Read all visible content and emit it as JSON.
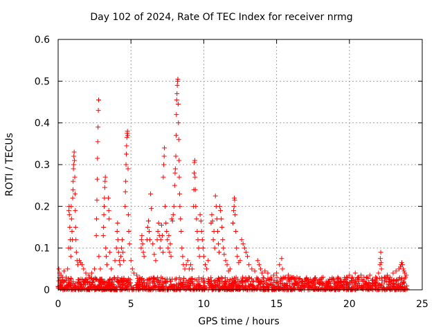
{
  "chart_data": {
    "type": "scatter",
    "title": "Day 102 of 2024, Rate Of TEC Index for receiver nrmg",
    "xlabel": "GPS time / hours",
    "ylabel": "ROTI / TECUs",
    "xlim": [
      0,
      25
    ],
    "ylim": [
      0,
      0.6
    ],
    "xticks": [
      0,
      5,
      10,
      15,
      20,
      25
    ],
    "yticks": [
      0,
      0.1,
      0.2,
      0.3,
      0.4,
      0.5,
      0.6
    ],
    "grid": true,
    "marker": "+",
    "color": "#ff0000",
    "baseline_noise": {
      "x_start": 0,
      "x_end": 24,
      "typical_max": 0.03
    },
    "series": [
      {
        "name": "ROTI",
        "points": [
          [
            0.05,
            0.05
          ],
          [
            0.1,
            0.04
          ],
          [
            0.2,
            0.035
          ],
          [
            0.3,
            0.03
          ],
          [
            0.4,
            0.045
          ],
          [
            0.55,
            0.03
          ],
          [
            0.65,
            0.05
          ],
          [
            0.72,
            0.1
          ],
          [
            0.74,
            0.19
          ],
          [
            0.75,
            0.2
          ],
          [
            0.77,
            0.18
          ],
          [
            0.8,
            0.15
          ],
          [
            0.83,
            0.12
          ],
          [
            0.85,
            0.1
          ],
          [
            0.87,
            0.08
          ],
          [
            0.9,
            0.2
          ],
          [
            0.92,
            0.17
          ],
          [
            0.95,
            0.14
          ],
          [
            0.97,
            0.12
          ],
          [
            1.0,
            0.22
          ],
          [
            1.02,
            0.24
          ],
          [
            1.03,
            0.26
          ],
          [
            1.05,
            0.29
          ],
          [
            1.06,
            0.3
          ],
          [
            1.08,
            0.32
          ],
          [
            1.1,
            0.33
          ],
          [
            1.12,
            0.31
          ],
          [
            1.14,
            0.27
          ],
          [
            1.16,
            0.23
          ],
          [
            1.18,
            0.19
          ],
          [
            1.2,
            0.15
          ],
          [
            1.22,
            0.12
          ],
          [
            1.25,
            0.09
          ],
          [
            1.3,
            0.07
          ],
          [
            1.35,
            0.06
          ],
          [
            1.45,
            0.07
          ],
          [
            1.55,
            0.065
          ],
          [
            1.65,
            0.06
          ],
          [
            1.75,
            0.05
          ],
          [
            1.9,
            0.04
          ],
          [
            2.1,
            0.035
          ],
          [
            2.3,
            0.04
          ],
          [
            2.5,
            0.05
          ],
          [
            2.62,
            0.13
          ],
          [
            2.64,
            0.17
          ],
          [
            2.66,
            0.215
          ],
          [
            2.68,
            0.265
          ],
          [
            2.7,
            0.315
          ],
          [
            2.72,
            0.355
          ],
          [
            2.74,
            0.39
          ],
          [
            2.76,
            0.43
          ],
          [
            2.78,
            0.455
          ],
          [
            2.8,
            0.08
          ],
          [
            2.9,
            0.05
          ],
          [
            3.1,
            0.13
          ],
          [
            3.12,
            0.15
          ],
          [
            3.14,
            0.18
          ],
          [
            3.16,
            0.2
          ],
          [
            3.18,
            0.22
          ],
          [
            3.2,
            0.245
          ],
          [
            3.22,
            0.26
          ],
          [
            3.24,
            0.27
          ],
          [
            3.27,
            0.1
          ],
          [
            3.3,
            0.08
          ],
          [
            3.35,
            0.06
          ],
          [
            3.45,
            0.22
          ],
          [
            3.48,
            0.19
          ],
          [
            3.5,
            0.17
          ],
          [
            3.55,
            0.09
          ],
          [
            3.65,
            0.05
          ],
          [
            3.9,
            0.07
          ],
          [
            4.0,
            0.1
          ],
          [
            4.05,
            0.14
          ],
          [
            4.08,
            0.16
          ],
          [
            4.1,
            0.12
          ],
          [
            4.15,
            0.09
          ],
          [
            4.2,
            0.07
          ],
          [
            4.25,
            0.06
          ],
          [
            4.3,
            0.08
          ],
          [
            4.35,
            0.1
          ],
          [
            4.4,
            0.12
          ],
          [
            4.45,
            0.09
          ],
          [
            4.5,
            0.07
          ],
          [
            4.6,
            0.2
          ],
          [
            4.62,
            0.235
          ],
          [
            4.64,
            0.26
          ],
          [
            4.66,
            0.3
          ],
          [
            4.68,
            0.325
          ],
          [
            4.7,
            0.345
          ],
          [
            4.72,
            0.365
          ],
          [
            4.74,
            0.375
          ],
          [
            4.76,
            0.38
          ],
          [
            4.78,
            0.37
          ],
          [
            4.8,
            0.29
          ],
          [
            4.82,
            0.18
          ],
          [
            4.85,
            0.14
          ],
          [
            4.9,
            0.11
          ],
          [
            5.0,
            0.07
          ],
          [
            5.1,
            0.05
          ],
          [
            5.2,
            0.04
          ],
          [
            5.4,
            0.035
          ],
          [
            5.6,
            0.03
          ],
          [
            5.7,
            0.1
          ],
          [
            5.72,
            0.12
          ],
          [
            5.75,
            0.13
          ],
          [
            5.8,
            0.11
          ],
          [
            5.85,
            0.09
          ],
          [
            5.9,
            0.08
          ],
          [
            6.1,
            0.12
          ],
          [
            6.15,
            0.15
          ],
          [
            6.2,
            0.165
          ],
          [
            6.25,
            0.14
          ],
          [
            6.3,
            0.12
          ],
          [
            6.35,
            0.23
          ],
          [
            6.4,
            0.195
          ],
          [
            6.5,
            0.11
          ],
          [
            6.6,
            0.085
          ],
          [
            6.7,
            0.07
          ],
          [
            6.8,
            0.12
          ],
          [
            6.85,
            0.14
          ],
          [
            6.9,
            0.16
          ],
          [
            6.95,
            0.13
          ],
          [
            7.0,
            0.1
          ],
          [
            7.05,
            0.12
          ],
          [
            7.1,
            0.155
          ],
          [
            7.15,
            0.13
          ],
          [
            7.2,
            0.09
          ],
          [
            7.22,
            0.27
          ],
          [
            7.25,
            0.3
          ],
          [
            7.28,
            0.32
          ],
          [
            7.3,
            0.34
          ],
          [
            7.35,
            0.2
          ],
          [
            7.4,
            0.16
          ],
          [
            7.45,
            0.14
          ],
          [
            7.5,
            0.12
          ],
          [
            7.55,
            0.1
          ],
          [
            7.6,
            0.13
          ],
          [
            7.65,
            0.09
          ],
          [
            7.7,
            0.11
          ],
          [
            7.75,
            0.08
          ],
          [
            7.8,
            0.17
          ],
          [
            7.85,
            0.165
          ],
          [
            7.9,
            0.18
          ],
          [
            7.95,
            0.2
          ],
          [
            8.0,
            0.25
          ],
          [
            8.03,
            0.28
          ],
          [
            8.05,
            0.29
          ],
          [
            8.08,
            0.32
          ],
          [
            8.1,
            0.37
          ],
          [
            8.12,
            0.42
          ],
          [
            8.14,
            0.455
          ],
          [
            8.16,
            0.47
          ],
          [
            8.18,
            0.49
          ],
          [
            8.2,
            0.5
          ],
          [
            8.22,
            0.505
          ],
          [
            8.24,
            0.445
          ],
          [
            8.26,
            0.4
          ],
          [
            8.28,
            0.36
          ],
          [
            8.3,
            0.31
          ],
          [
            8.32,
            0.27
          ],
          [
            8.34,
            0.23
          ],
          [
            8.36,
            0.2
          ],
          [
            8.4,
            0.17
          ],
          [
            8.45,
            0.14
          ],
          [
            8.5,
            0.1
          ],
          [
            8.55,
            0.08
          ],
          [
            8.6,
            0.06
          ],
          [
            8.7,
            0.05
          ],
          [
            8.8,
            0.06
          ],
          [
            8.9,
            0.07
          ],
          [
            9.0,
            0.05
          ],
          [
            9.1,
            0.06
          ],
          [
            9.2,
            0.05
          ],
          [
            9.3,
            0.2
          ],
          [
            9.32,
            0.24
          ],
          [
            9.34,
            0.28
          ],
          [
            9.36,
            0.305
          ],
          [
            9.38,
            0.31
          ],
          [
            9.4,
            0.27
          ],
          [
            9.42,
            0.24
          ],
          [
            9.45,
            0.2
          ],
          [
            9.5,
            0.17
          ],
          [
            9.55,
            0.14
          ],
          [
            9.6,
            0.12
          ],
          [
            9.65,
            0.1
          ],
          [
            9.7,
            0.08
          ],
          [
            9.75,
            0.18
          ],
          [
            9.8,
            0.165
          ],
          [
            9.85,
            0.14
          ],
          [
            9.9,
            0.12
          ],
          [
            9.95,
            0.1
          ],
          [
            10.0,
            0.08
          ],
          [
            10.1,
            0.06
          ],
          [
            10.2,
            0.05
          ],
          [
            10.3,
            0.07
          ],
          [
            10.5,
            0.16
          ],
          [
            10.55,
            0.18
          ],
          [
            10.6,
            0.165
          ],
          [
            10.65,
            0.12
          ],
          [
            10.7,
            0.14
          ],
          [
            10.75,
            0.1
          ],
          [
            10.8,
            0.225
          ],
          [
            10.85,
            0.2
          ],
          [
            10.9,
            0.17
          ],
          [
            10.95,
            0.14
          ],
          [
            11.0,
            0.11
          ],
          [
            11.05,
            0.09
          ],
          [
            11.1,
            0.2
          ],
          [
            11.15,
            0.19
          ],
          [
            11.2,
            0.17
          ],
          [
            11.25,
            0.15
          ],
          [
            11.3,
            0.12
          ],
          [
            11.35,
            0.1
          ],
          [
            11.4,
            0.085
          ],
          [
            11.5,
            0.07
          ],
          [
            11.6,
            0.06
          ],
          [
            11.7,
            0.045
          ],
          [
            11.8,
            0.05
          ],
          [
            12.0,
            0.16
          ],
          [
            12.05,
            0.19
          ],
          [
            12.08,
            0.2
          ],
          [
            12.1,
            0.22
          ],
          [
            12.12,
            0.215
          ],
          [
            12.15,
            0.18
          ],
          [
            12.2,
            0.14
          ],
          [
            12.25,
            0.1
          ],
          [
            12.3,
            0.08
          ],
          [
            12.4,
            0.065
          ],
          [
            12.5,
            0.07
          ],
          [
            12.6,
            0.12
          ],
          [
            12.7,
            0.11
          ],
          [
            12.8,
            0.1
          ],
          [
            12.9,
            0.09
          ],
          [
            13.0,
            0.08
          ],
          [
            13.1,
            0.06
          ],
          [
            13.3,
            0.05
          ],
          [
            13.5,
            0.045
          ],
          [
            13.7,
            0.07
          ],
          [
            13.8,
            0.06
          ],
          [
            13.9,
            0.05
          ],
          [
            14.0,
            0.04
          ],
          [
            14.2,
            0.045
          ],
          [
            14.4,
            0.04
          ],
          [
            14.6,
            0.03
          ],
          [
            14.8,
            0.035
          ],
          [
            15.0,
            0.04
          ],
          [
            15.2,
            0.06
          ],
          [
            15.35,
            0.075
          ],
          [
            15.4,
            0.05
          ],
          [
            15.6,
            0.03
          ],
          [
            15.8,
            0.035
          ],
          [
            16.0,
            0.03
          ],
          [
            16.2,
            0.025
          ],
          [
            16.4,
            0.03
          ],
          [
            16.6,
            0.025
          ],
          [
            16.8,
            0.02
          ],
          [
            17.0,
            0.025
          ],
          [
            17.2,
            0.02
          ],
          [
            17.4,
            0.02
          ],
          [
            17.6,
            0.025
          ],
          [
            17.8,
            0.02
          ],
          [
            18.0,
            0.025
          ],
          [
            18.2,
            0.03
          ],
          [
            18.4,
            0.02
          ],
          [
            18.6,
            0.02
          ],
          [
            18.8,
            0.025
          ],
          [
            19.0,
            0.02
          ],
          [
            19.2,
            0.03
          ],
          [
            19.4,
            0.025
          ],
          [
            19.6,
            0.02
          ],
          [
            19.8,
            0.03
          ],
          [
            20.0,
            0.035
          ],
          [
            20.2,
            0.03
          ],
          [
            20.4,
            0.04
          ],
          [
            20.6,
            0.03
          ],
          [
            20.8,
            0.035
          ],
          [
            21.0,
            0.03
          ],
          [
            21.2,
            0.03
          ],
          [
            21.4,
            0.035
          ],
          [
            21.6,
            0.025
          ],
          [
            21.8,
            0.03
          ],
          [
            22.0,
            0.04
          ],
          [
            22.1,
            0.06
          ],
          [
            22.12,
            0.075
          ],
          [
            22.15,
            0.09
          ],
          [
            22.18,
            0.065
          ],
          [
            22.2,
            0.05
          ],
          [
            22.4,
            0.03
          ],
          [
            22.6,
            0.035
          ],
          [
            22.8,
            0.03
          ],
          [
            23.0,
            0.04
          ],
          [
            23.2,
            0.045
          ],
          [
            23.4,
            0.05
          ],
          [
            23.5,
            0.055
          ],
          [
            23.55,
            0.06
          ],
          [
            23.6,
            0.065
          ],
          [
            23.65,
            0.06
          ],
          [
            23.7,
            0.05
          ],
          [
            23.75,
            0.045
          ],
          [
            23.8,
            0.04
          ],
          [
            23.85,
            0.03
          ],
          [
            23.9,
            0.035
          ]
        ]
      }
    ]
  }
}
